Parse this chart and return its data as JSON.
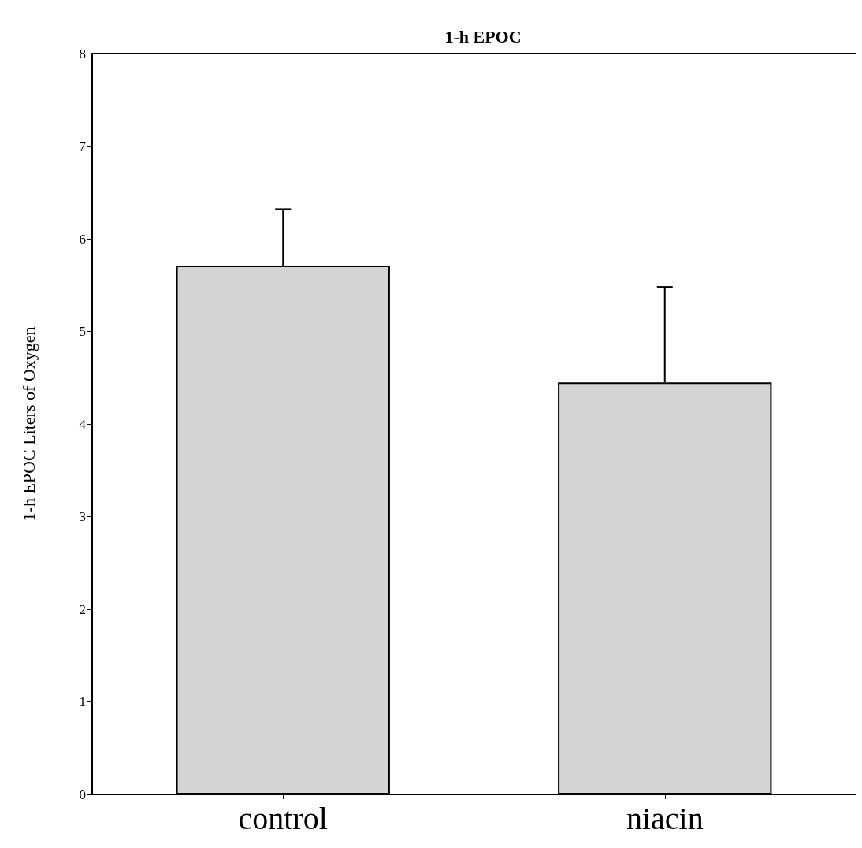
{
  "chart_data": {
    "type": "bar",
    "title": "1-h EPOC",
    "ylabel": "1-h EPOC Liters of Oxygen",
    "categories": [
      "control",
      "niacin"
    ],
    "values": [
      5.71,
      4.45
    ],
    "errors": [
      [
        5.71,
        6.32
      ],
      [
        4.45,
        5.48
      ]
    ],
    "color": "#d4d4d4",
    "ylim": [
      0,
      8
    ],
    "yticks": [
      0,
      1,
      2,
      3,
      4,
      5,
      6,
      7,
      8
    ],
    "grid": false
  }
}
